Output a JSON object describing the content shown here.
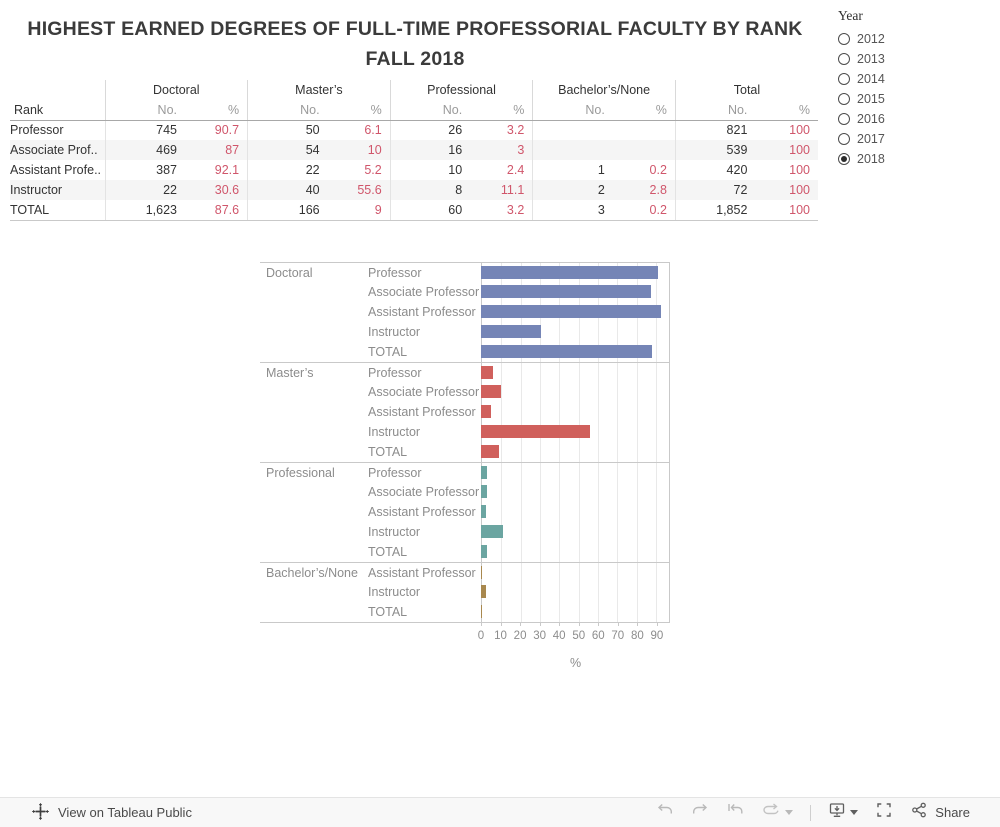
{
  "title": {
    "line1": "HIGHEST EARNED DEGREES OF FULL-TIME PROFESSORIAL FACULTY BY RANK",
    "line2": "FALL 2018"
  },
  "year_filter": {
    "label": "Year",
    "options": [
      "2012",
      "2013",
      "2014",
      "2015",
      "2016",
      "2017",
      "2018"
    ],
    "selected": "2018"
  },
  "table": {
    "rank_header": "Rank",
    "sub_headers": {
      "no": "No.",
      "pct": "%"
    },
    "groups": [
      "Doctoral",
      "Master’s",
      "Professional",
      "Bachelor’s/None",
      "Total"
    ],
    "pct_color": "#d0566b",
    "rows": [
      {
        "rank": "Professor",
        "cells": [
          {
            "no": "745",
            "pct": "90.7"
          },
          {
            "no": "50",
            "pct": "6.1"
          },
          {
            "no": "26",
            "pct": "3.2"
          },
          {
            "no": "",
            "pct": ""
          },
          {
            "no": "821",
            "pct": "100"
          }
        ]
      },
      {
        "rank": "Associate Prof..",
        "cells": [
          {
            "no": "469",
            "pct": "87"
          },
          {
            "no": "54",
            "pct": "10"
          },
          {
            "no": "16",
            "pct": "3"
          },
          {
            "no": "",
            "pct": ""
          },
          {
            "no": "539",
            "pct": "100"
          }
        ]
      },
      {
        "rank": "Assistant Profe..",
        "cells": [
          {
            "no": "387",
            "pct": "92.1"
          },
          {
            "no": "22",
            "pct": "5.2"
          },
          {
            "no": "10",
            "pct": "2.4"
          },
          {
            "no": "1",
            "pct": "0.2"
          },
          {
            "no": "420",
            "pct": "100"
          }
        ]
      },
      {
        "rank": "Instructor",
        "cells": [
          {
            "no": "22",
            "pct": "30.6"
          },
          {
            "no": "40",
            "pct": "55.6"
          },
          {
            "no": "8",
            "pct": "11.1"
          },
          {
            "no": "2",
            "pct": "2.8"
          },
          {
            "no": "72",
            "pct": "100"
          }
        ]
      },
      {
        "rank": "TOTAL",
        "cells": [
          {
            "no": "1,623",
            "pct": "87.6"
          },
          {
            "no": "166",
            "pct": "9"
          },
          {
            "no": "60",
            "pct": "3.2"
          },
          {
            "no": "3",
            "pct": "0.2"
          },
          {
            "no": "1,852",
            "pct": "100"
          }
        ]
      }
    ]
  },
  "chart_data": {
    "type": "bar",
    "orientation": "horizontal",
    "title": "",
    "xlabel": "%",
    "x_ticks": [
      0,
      10,
      20,
      30,
      40,
      50,
      60,
      70,
      80,
      90
    ],
    "xlim": [
      0,
      96.7
    ],
    "grid": true,
    "legend": "none",
    "groups": [
      {
        "label": "Doctoral",
        "color": "#7585b6",
        "bars": [
          {
            "label": "Professor",
            "value": 90.7
          },
          {
            "label": "Associate Professor",
            "value": 87
          },
          {
            "label": "Assistant Professor",
            "value": 92.1
          },
          {
            "label": "Instructor",
            "value": 30.6
          },
          {
            "label": "TOTAL",
            "value": 87.6
          }
        ]
      },
      {
        "label": "Master’s",
        "color": "#d0605c",
        "bars": [
          {
            "label": "Professor",
            "value": 6.1
          },
          {
            "label": "Associate Professor",
            "value": 10
          },
          {
            "label": "Assistant Professor",
            "value": 5.2
          },
          {
            "label": "Instructor",
            "value": 55.6
          },
          {
            "label": "TOTAL",
            "value": 9
          }
        ]
      },
      {
        "label": "Professional",
        "color": "#6ba5a1",
        "bars": [
          {
            "label": "Professor",
            "value": 3.2
          },
          {
            "label": "Associate Professor",
            "value": 3
          },
          {
            "label": "Assistant Professor",
            "value": 2.4
          },
          {
            "label": "Instructor",
            "value": 11.1
          },
          {
            "label": "TOTAL",
            "value": 3.2
          }
        ]
      },
      {
        "label": "Bachelor’s/None",
        "color": "#a8884e",
        "bars": [
          {
            "label": "Assistant Professor",
            "value": 0.2
          },
          {
            "label": "Instructor",
            "value": 2.8
          },
          {
            "label": "TOTAL",
            "value": 0.2
          }
        ]
      }
    ]
  },
  "footer": {
    "view_label": "View on Tableau Public",
    "share_label": "Share"
  }
}
